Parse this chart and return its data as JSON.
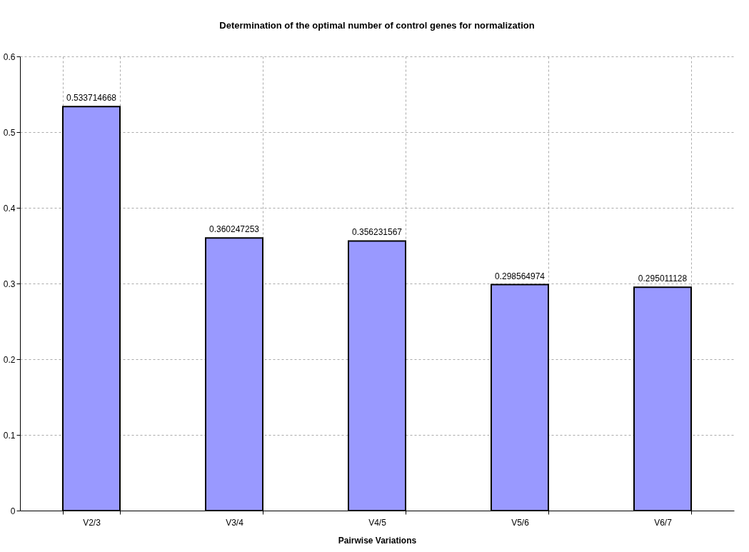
{
  "chart_data": {
    "type": "bar",
    "title": "Determination of the optimal number of control genes for normalization",
    "xlabel": "Pairwise Variations",
    "categories": [
      "V2/3",
      "V3/4",
      "V4/5",
      "V5/6",
      "V6/7"
    ],
    "values": [
      0.533714668,
      0.360247253,
      0.356231567,
      0.298564974,
      0.295011128
    ],
    "color": "#9999ff",
    "ylim": [
      0,
      0.6
    ],
    "yticks": [
      0,
      0.1,
      0.2,
      0.3,
      0.4,
      0.5,
      0.6
    ],
    "grid": true,
    "data_labels": true
  }
}
